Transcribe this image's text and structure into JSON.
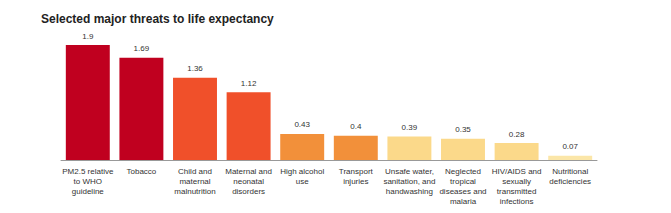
{
  "chart_data": {
    "type": "bar",
    "title": "Selected major threats to life expectancy",
    "categories": [
      "PM2.5 relative\nto WHO\nguideline",
      "Tobacco",
      "Child and\nmaternal\nmalnutrition",
      "Maternal and\nneonatal\ndisorders",
      "High alcohol\nuse",
      "Transport\ninjuries",
      "Unsafe water,\nsanitation, and\nhandwashing",
      "Neglected\ntropical\ndiseases and\nmalaria",
      "HIV/AIDS and\nsexually\ntransmitted\ninfections",
      "Nutritional\ndeficiencies"
    ],
    "values": [
      1.9,
      1.69,
      1.36,
      1.12,
      0.43,
      0.4,
      0.39,
      0.35,
      0.28,
      0.07
    ],
    "colors": [
      "#c0001f",
      "#c0001f",
      "#f0502a",
      "#f0502a",
      "#f2903a",
      "#f2903a",
      "#fbd98a",
      "#fbd98a",
      "#fbd98a",
      "#fbe6a8"
    ],
    "ylim": [
      0,
      1.9
    ],
    "grid": false,
    "tick_labels": "x",
    "data_labels": true
  }
}
